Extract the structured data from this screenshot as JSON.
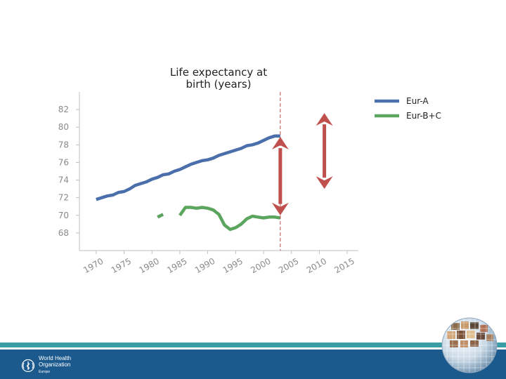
{
  "chart_data": {
    "type": "line",
    "title": "Life expectancy at birth (years)",
    "title_lines": [
      "Life expectancy at",
      "birth (years)"
    ],
    "xlabel": "",
    "ylabel": "",
    "xlim": [
      1967,
      2017
    ],
    "ylim": [
      66,
      84
    ],
    "x_ticks": [
      1970,
      1975,
      1980,
      1985,
      1990,
      1995,
      2000,
      2005,
      2010,
      2015
    ],
    "x_tick_labels": [
      "1970",
      "1975",
      "1980",
      "1985",
      "1990",
      "1995",
      "2000",
      "2005",
      "2010",
      "2015"
    ],
    "y_ticks": [
      68,
      70,
      72,
      74,
      76,
      78,
      80,
      82
    ],
    "y_tick_labels": [
      "68",
      "70",
      "72",
      "74",
      "76",
      "78",
      "80",
      "82"
    ],
    "legend_position": "top-right",
    "series": [
      {
        "name": "Eur-A",
        "color": "#4a6fab",
        "points": [
          [
            1970,
            71.8
          ],
          [
            1971,
            72.0
          ],
          [
            1972,
            72.2
          ],
          [
            1973,
            72.3
          ],
          [
            1974,
            72.6
          ],
          [
            1975,
            72.7
          ],
          [
            1976,
            73.0
          ],
          [
            1977,
            73.4
          ],
          [
            1978,
            73.6
          ],
          [
            1979,
            73.8
          ],
          [
            1980,
            74.1
          ],
          [
            1981,
            74.3
          ],
          [
            1982,
            74.6
          ],
          [
            1983,
            74.7
          ],
          [
            1984,
            75.0
          ],
          [
            1985,
            75.2
          ],
          [
            1986,
            75.5
          ],
          [
            1987,
            75.8
          ],
          [
            1988,
            76.0
          ],
          [
            1989,
            76.2
          ],
          [
            1990,
            76.3
          ],
          [
            1991,
            76.5
          ],
          [
            1992,
            76.8
          ],
          [
            1993,
            77.0
          ],
          [
            1994,
            77.2
          ],
          [
            1995,
            77.4
          ],
          [
            1996,
            77.6
          ],
          [
            1997,
            77.9
          ],
          [
            1998,
            78.0
          ],
          [
            1999,
            78.2
          ],
          [
            2000,
            78.5
          ],
          [
            2001,
            78.8
          ],
          [
            2002,
            79.0
          ],
          [
            2003,
            79.0
          ]
        ]
      },
      {
        "name": "Eur-B+C",
        "color": "#5ba55e",
        "points": [
          [
            1981,
            69.8
          ],
          [
            1982,
            70.1
          ],
          null,
          [
            1985,
            70.0
          ],
          [
            1986,
            70.9
          ],
          [
            1987,
            70.9
          ],
          [
            1988,
            70.8
          ],
          [
            1989,
            70.9
          ],
          [
            1990,
            70.8
          ],
          [
            1991,
            70.6
          ],
          [
            1992,
            70.1
          ],
          [
            1993,
            68.9
          ],
          [
            1994,
            68.4
          ],
          [
            1995,
            68.6
          ],
          [
            1996,
            69.0
          ],
          [
            1997,
            69.6
          ],
          [
            1998,
            69.9
          ],
          [
            1999,
            69.8
          ],
          [
            2000,
            69.7
          ],
          [
            2001,
            69.8
          ],
          [
            2002,
            69.8
          ],
          [
            2003,
            69.7
          ]
        ]
      }
    ],
    "reference_line": {
      "x": 2003,
      "color": "#c0504d",
      "style": "dashed"
    },
    "arrows": [
      {
        "x": 2003,
        "from": 70.0,
        "to": 78.9,
        "color": "#c0504d"
      },
      {
        "x": 2010.9,
        "from": 73.0,
        "to": 81.6,
        "color": "#c0504d"
      }
    ]
  },
  "footer": {
    "org_line1": "World Health",
    "org_line2": "Organization",
    "region": "Europe",
    "teal_color": "#3a9ca5",
    "blue_color": "#1c5a8e"
  }
}
